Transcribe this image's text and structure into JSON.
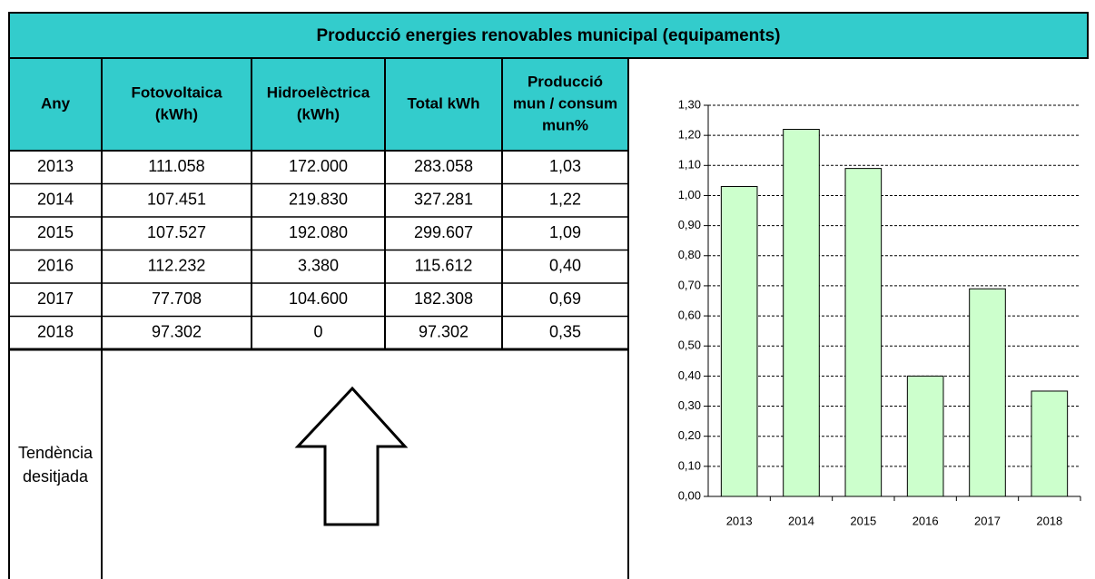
{
  "title": "Producció energies renovables municipal (equipaments)",
  "table": {
    "headers": [
      [
        "Any"
      ],
      [
        "Fotovoltaica",
        "(kWh)"
      ],
      [
        "Hidroelèctrica",
        "(kWh)"
      ],
      [
        "Total kWh"
      ],
      [
        "Producció",
        "mun / consum",
        "mun%"
      ]
    ],
    "rows": [
      [
        "2013",
        "111.058",
        "172.000",
        "283.058",
        "1,03"
      ],
      [
        "2014",
        "107.451",
        "219.830",
        "327.281",
        "1,22"
      ],
      [
        "2015",
        "107.527",
        "192.080",
        "299.607",
        "1,09"
      ],
      [
        "2016",
        "112.232",
        "3.380",
        "115.612",
        "0,40"
      ],
      [
        "2017",
        "77.708",
        "104.600",
        "182.308",
        "0,69"
      ],
      [
        "2018",
        "97.302",
        "0",
        "97.302",
        "0,35"
      ]
    ]
  },
  "trend_label": [
    "Tendència",
    "desitjada"
  ],
  "chart_data": {
    "type": "bar",
    "categories": [
      "2013",
      "2014",
      "2015",
      "2016",
      "2017",
      "2018"
    ],
    "values": [
      1.03,
      1.22,
      1.09,
      0.4,
      0.69,
      0.35
    ],
    "color": "#ccffcc",
    "ylim": [
      0,
      1.3
    ],
    "yticks": [
      {
        "value": 0,
        "label": "0,00"
      },
      {
        "value": 0.1,
        "label": "0,10"
      },
      {
        "value": 0.2,
        "label": "0,20"
      },
      {
        "value": 0.3,
        "label": "0,30"
      },
      {
        "value": 0.4,
        "label": "0,40"
      },
      {
        "value": 0.5,
        "label": "0,50"
      },
      {
        "value": 0.6,
        "label": "0,60"
      },
      {
        "value": 0.7,
        "label": "0,70"
      },
      {
        "value": 0.8,
        "label": "0,80"
      },
      {
        "value": 0.9,
        "label": "0,90"
      },
      {
        "value": 1.0,
        "label": "1,00"
      },
      {
        "value": 1.1,
        "label": "1,10"
      },
      {
        "value": 1.2,
        "label": "1,20"
      },
      {
        "value": 1.3,
        "label": "1,30"
      }
    ],
    "grid": true
  }
}
